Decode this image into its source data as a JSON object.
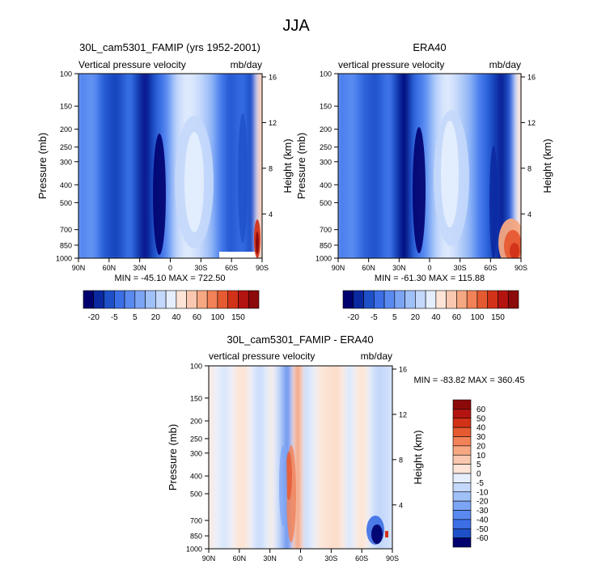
{
  "figure": {
    "title": "JJA"
  },
  "chart_data": [
    {
      "type": "heatmap",
      "title": "30L_cam5301_FAMIP (yrs 1952-2001)",
      "left_label": "Vertical pressure velocity",
      "right_label": "mb/day",
      "ylabel": "Pressure (mb)",
      "y2label": "Height (km)",
      "x_ticks": [
        "90N",
        "60N",
        "30N",
        "0",
        "30S",
        "60S",
        "90S"
      ],
      "y_ticks": [
        "100",
        "150",
        "200",
        "250",
        "300",
        "400",
        "500",
        "700",
        "850",
        "1000"
      ],
      "y2_ticks": [
        "16",
        "12",
        "8",
        "4"
      ],
      "stats": "MIN = -45.10   MAX = 722.50",
      "colorbar": {
        "labels": [
          "-20",
          "-5",
          "5",
          "20",
          "40",
          "60",
          "100",
          "150"
        ],
        "colors": [
          "#00006e",
          "#0a28a0",
          "#1e50c8",
          "#3c6ee6",
          "#5a8af0",
          "#7ca4f5",
          "#a0c0f8",
          "#c4d8fb",
          "#e4eefd",
          "#fde4d6",
          "#fac8b0",
          "#f6a882",
          "#f28258",
          "#e65a32",
          "#d23218",
          "#b41410",
          "#8c0a0a"
        ]
      },
      "fields": [
        {
          "x": 0,
          "v": -5
        },
        {
          "x": 18,
          "v": -2
        },
        {
          "x": 30,
          "v": -10
        },
        {
          "x": 45,
          "v": -14
        },
        {
          "x": 62,
          "v": -7
        },
        {
          "x": 80,
          "v": -22
        },
        {
          "x": 90,
          "v": -12
        },
        {
          "x": 105,
          "v": -4
        },
        {
          "x": 118,
          "v": 8
        },
        {
          "x": 130,
          "v": 12
        },
        {
          "x": 140,
          "v": 10
        },
        {
          "x": 158,
          "v": 3
        },
        {
          "x": 170,
          "v": -6
        },
        {
          "x": 180,
          "v": -11
        },
        {
          "x": 196,
          "v": -8
        },
        {
          "x": 208,
          "v": -14
        },
        {
          "x": 218,
          "v": 40
        }
      ]
    },
    {
      "type": "heatmap",
      "title": "ERA40",
      "left_label": "vertical pressure velocity",
      "right_label": "mb/day",
      "ylabel": "Pressure (mb)",
      "y2label": "Height (km)",
      "x_ticks": [
        "90N",
        "60N",
        "30N",
        "0",
        "30S",
        "60S",
        "90S"
      ],
      "y_ticks": [
        "100",
        "150",
        "200",
        "250",
        "300",
        "400",
        "500",
        "700",
        "850",
        "1000"
      ],
      "y2_ticks": [
        "16",
        "12",
        "8",
        "4"
      ],
      "stats": "MIN = -61.30   MAX = 115.88",
      "colorbar": {
        "labels": [
          "-20",
          "-5",
          "5",
          "20",
          "40",
          "60",
          "100",
          "150"
        ],
        "colors": [
          "#00006e",
          "#0a28a0",
          "#1e50c8",
          "#3c6ee6",
          "#5a8af0",
          "#7ca4f5",
          "#a0c0f8",
          "#c4d8fb",
          "#e4eefd",
          "#fde4d6",
          "#fac8b0",
          "#f6a882",
          "#f28258",
          "#e65a32",
          "#d23218",
          "#b41410",
          "#8c0a0a"
        ]
      },
      "fields": [
        {
          "x": 0,
          "v": -6
        },
        {
          "x": 18,
          "v": -3
        },
        {
          "x": 30,
          "v": -9
        },
        {
          "x": 45,
          "v": -12
        },
        {
          "x": 62,
          "v": -6
        },
        {
          "x": 80,
          "v": -24
        },
        {
          "x": 90,
          "v": -10
        },
        {
          "x": 105,
          "v": -3
        },
        {
          "x": 118,
          "v": 7
        },
        {
          "x": 130,
          "v": 12
        },
        {
          "x": 140,
          "v": 9
        },
        {
          "x": 158,
          "v": 2
        },
        {
          "x": 170,
          "v": -6
        },
        {
          "x": 180,
          "v": -10
        },
        {
          "x": 196,
          "v": -20
        },
        {
          "x": 208,
          "v": -8
        },
        {
          "x": 218,
          "v": 30
        }
      ]
    },
    {
      "type": "heatmap",
      "title": "30L_cam5301_FAMIP - ERA40",
      "left_label": "vertical pressure velocity",
      "right_label": "mb/day",
      "ylabel": "Pressure (mb)",
      "y2label": "Height (km)",
      "x_ticks": [
        "90N",
        "60N",
        "30N",
        "0",
        "30S",
        "60S",
        "90S"
      ],
      "y_ticks": [
        "100",
        "150",
        "200",
        "250",
        "300",
        "400",
        "500",
        "700",
        "850",
        "1000"
      ],
      "y2_ticks": [
        "16",
        "12",
        "8",
        "4"
      ],
      "stats": "MIN = -83.82   MAX = 360.45",
      "colorbar": {
        "labels": [
          "60",
          "50",
          "40",
          "30",
          "20",
          "10",
          "5",
          "0",
          "-5",
          "-10",
          "-20",
          "-30",
          "-40",
          "-50",
          "-60"
        ],
        "colors": [
          "#8c0a0a",
          "#b41410",
          "#d23218",
          "#e65a32",
          "#f28258",
          "#f6a882",
          "#fac8b0",
          "#fde4d6",
          "#e4eefd",
          "#c4d8fb",
          "#a0c0f8",
          "#7ca4f5",
          "#5a8af0",
          "#3c6ee6",
          "#1e50c8",
          "#00006e"
        ]
      },
      "fields": [
        {
          "x": 0,
          "v": 1
        },
        {
          "x": 20,
          "v": -1
        },
        {
          "x": 40,
          "v": 2
        },
        {
          "x": 60,
          "v": -2
        },
        {
          "x": 75,
          "v": 1
        },
        {
          "x": 95,
          "v": -8
        },
        {
          "x": 105,
          "v": 12
        },
        {
          "x": 112,
          "v": -2
        },
        {
          "x": 130,
          "v": 1
        },
        {
          "x": 150,
          "v": 3
        },
        {
          "x": 165,
          "v": -1
        },
        {
          "x": 180,
          "v": 2
        },
        {
          "x": 200,
          "v": -3
        },
        {
          "x": 215,
          "v": -1
        }
      ]
    }
  ]
}
